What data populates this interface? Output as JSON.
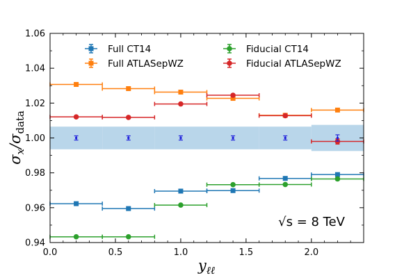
{
  "chart_data": {
    "type": "scatter",
    "xlabel_main": "y",
    "xlabel_sub": "ℓℓ",
    "ylabel_main": "σ",
    "ylabel_num_sub": "x",
    "ylabel_sep": "/σ",
    "ylabel_den_sub": "data",
    "xlim": [
      0.0,
      2.4
    ],
    "ylim": [
      0.94,
      1.06
    ],
    "x_ticks": [
      "0.0",
      "0.5",
      "1.0",
      "1.5",
      "2.0"
    ],
    "y_ticks": [
      "0.94",
      "0.96",
      "0.98",
      "1.00",
      "1.02",
      "1.04",
      "1.06"
    ],
    "legend_position": "top",
    "annotation": "√s = 8 TeV",
    "data_band": {
      "bins": [
        [
          0.0,
          0.4
        ],
        [
          0.4,
          0.8
        ],
        [
          0.8,
          1.2
        ],
        [
          1.2,
          1.6
        ],
        [
          1.6,
          2.0
        ],
        [
          2.0,
          2.4
        ]
      ],
      "central": [
        1.0,
        1.0,
        1.0,
        1.0,
        1.0,
        1.0
      ],
      "half_width": [
        0.0065,
        0.0065,
        0.0065,
        0.0065,
        0.0065,
        0.0075
      ],
      "stat_err": [
        0.0012,
        0.0012,
        0.0012,
        0.0012,
        0.0012,
        0.0018
      ],
      "color": "#b9d6ea",
      "point_color": "#1f1fdc"
    },
    "series": [
      {
        "name": "Full CT14",
        "marker": "square",
        "color": "#1f77b4",
        "bins": [
          [
            0.0,
            0.4
          ],
          [
            0.4,
            0.8
          ],
          [
            0.8,
            1.2
          ],
          [
            1.2,
            1.6
          ],
          [
            1.6,
            2.0
          ],
          [
            2.0,
            2.4
          ]
        ],
        "x": [
          0.2,
          0.6,
          1.0,
          1.4,
          1.8,
          2.2
        ],
        "y": [
          0.9623,
          0.9595,
          0.9695,
          0.9698,
          0.9768,
          0.979
        ],
        "yerr": [
          0.0005,
          0.0005,
          0.0005,
          0.0005,
          0.0005,
          0.0008
        ]
      },
      {
        "name": "Full ATLASepWZ",
        "marker": "square",
        "color": "#ff7f0e",
        "bins": [
          [
            0.0,
            0.4
          ],
          [
            0.4,
            0.8
          ],
          [
            0.8,
            1.2
          ],
          [
            1.2,
            1.6
          ],
          [
            1.6,
            2.0
          ],
          [
            2.0,
            2.4
          ]
        ],
        "x": [
          0.2,
          0.6,
          1.0,
          1.4,
          1.8,
          2.2
        ],
        "y": [
          1.0307,
          1.0283,
          1.0263,
          1.0227,
          1.013,
          1.016
        ],
        "yerr": [
          0.0005,
          0.0005,
          0.0005,
          0.0005,
          0.0005,
          0.0008
        ]
      },
      {
        "name": "Fiducial CT14",
        "marker": "circle",
        "color": "#2ca02c",
        "bins": [
          [
            0.0,
            0.4
          ],
          [
            0.4,
            0.8
          ],
          [
            0.8,
            1.2
          ],
          [
            1.2,
            1.6
          ],
          [
            1.6,
            2.0
          ],
          [
            2.0,
            2.4
          ]
        ],
        "x": [
          0.2,
          0.6,
          1.0,
          1.4,
          1.8,
          2.2
        ],
        "y": [
          0.9433,
          0.9433,
          0.9615,
          0.9732,
          0.9733,
          0.9765
        ],
        "yerr": [
          0.0005,
          0.0005,
          0.0005,
          0.0005,
          0.0005,
          0.0008
        ]
      },
      {
        "name": "Fiducial ATLASepWZ",
        "marker": "circle",
        "color": "#d62728",
        "bins": [
          [
            0.0,
            0.4
          ],
          [
            0.4,
            0.8
          ],
          [
            0.8,
            1.2
          ],
          [
            1.2,
            1.6
          ],
          [
            1.6,
            2.0
          ],
          [
            2.0,
            2.4
          ]
        ],
        "x": [
          0.2,
          0.6,
          1.0,
          1.4,
          1.8,
          2.2
        ],
        "y": [
          1.0121,
          1.0118,
          1.0195,
          1.0245,
          1.0128,
          0.998
        ],
        "yerr": [
          0.0005,
          0.0005,
          0.0005,
          0.0005,
          0.0005,
          0.0015
        ]
      }
    ]
  }
}
